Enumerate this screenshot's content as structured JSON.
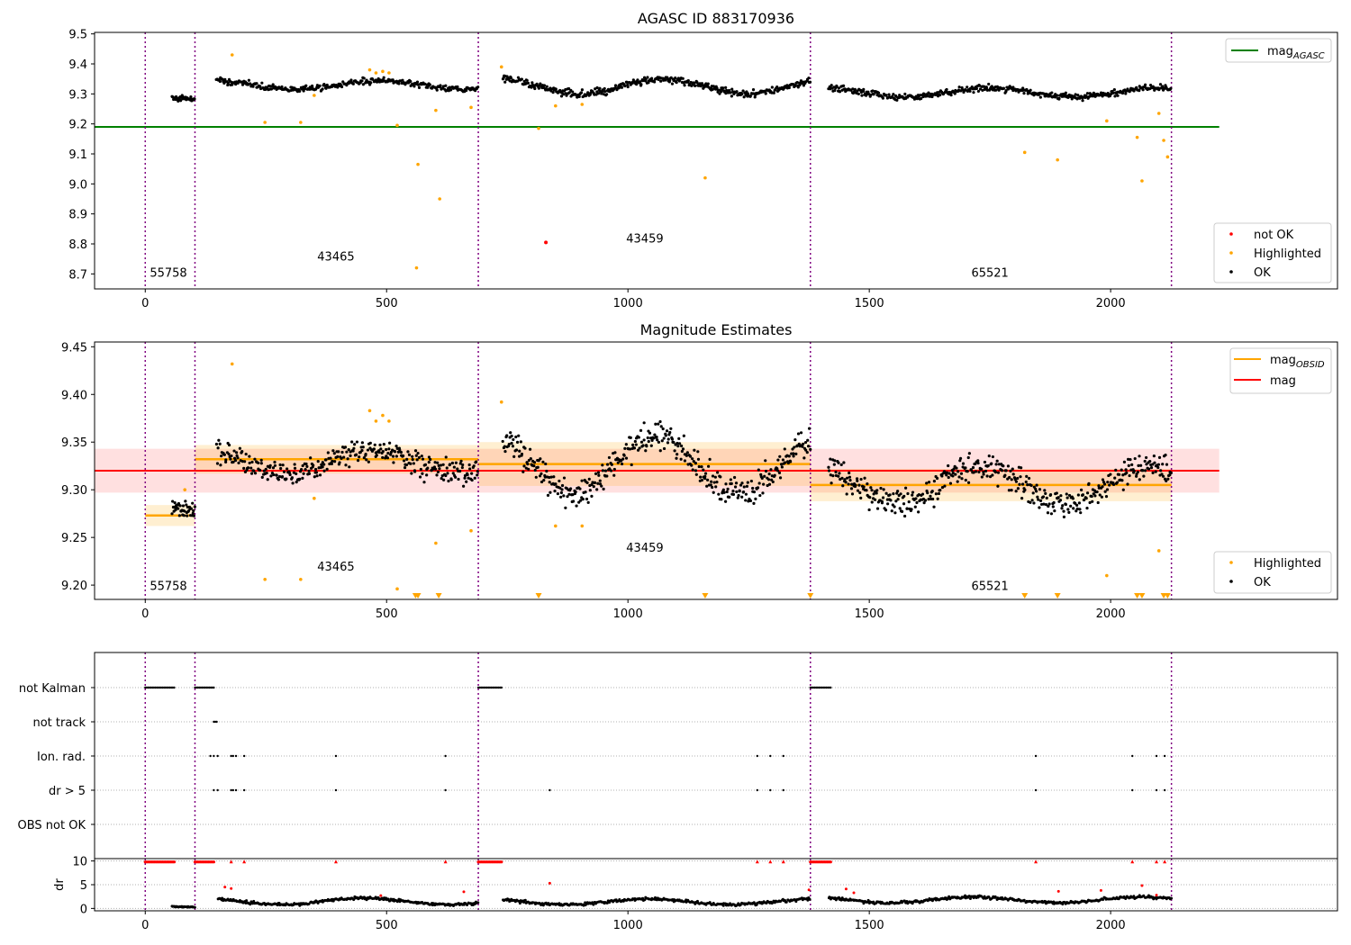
{
  "chart_data": [
    {
      "type": "scatter",
      "title": "AGASC ID 883170936",
      "xlim": [
        -105,
        2470
      ],
      "ylim": [
        8.65,
        9.505
      ],
      "xticks": [
        0,
        500,
        1000,
        1500,
        2000
      ],
      "yticks": [
        8.7,
        8.8,
        8.9,
        9.0,
        9.1,
        9.2,
        9.3,
        9.4,
        9.5
      ],
      "grid": false,
      "obsid_boundaries": [
        0,
        103,
        690,
        1378,
        2126
      ],
      "obsids": [
        {
          "label": "55758",
          "x": 48,
          "y": 8.69
        },
        {
          "label": "43465",
          "x": 395,
          "y": 8.745
        },
        {
          "label": "43459",
          "x": 1035,
          "y": 8.805
        },
        {
          "label": "65521",
          "x": 1750,
          "y": 8.69
        }
      ],
      "hlines": [
        {
          "name": "mag_AGASC",
          "y": 9.19,
          "x": [
            -105,
            2225
          ],
          "color": "#008000"
        }
      ],
      "segments": [
        {
          "x0": 55,
          "x1": 103,
          "base": 9.275,
          "amp": 0.012,
          "noise": 0.008,
          "n": 40
        },
        {
          "x0": 147,
          "x1": 690,
          "base": 9.33,
          "amp": 0.015,
          "noise": 0.01,
          "n": 330
        },
        {
          "x0": 740,
          "x1": 1378,
          "base": 9.325,
          "amp": 0.025,
          "noise": 0.012,
          "n": 400
        },
        {
          "x0": 1415,
          "x1": 2126,
          "base": 9.305,
          "amp": 0.015,
          "noise": 0.01,
          "n": 440
        }
      ],
      "highlighted": [
        [
          180,
          9.43
        ],
        [
          248,
          9.205
        ],
        [
          322,
          9.205
        ],
        [
          350,
          9.295
        ],
        [
          465,
          9.38
        ],
        [
          478,
          9.37
        ],
        [
          492,
          9.375
        ],
        [
          505,
          9.37
        ],
        [
          522,
          9.195
        ],
        [
          562,
          8.72
        ],
        [
          565,
          9.065
        ],
        [
          602,
          9.245
        ],
        [
          610,
          8.95
        ],
        [
          675,
          9.255
        ],
        [
          738,
          9.39
        ],
        [
          815,
          9.185
        ],
        [
          850,
          9.26
        ],
        [
          905,
          9.265
        ],
        [
          1160,
          9.02
        ],
        [
          1822,
          9.105
        ],
        [
          1890,
          9.08
        ],
        [
          1992,
          9.21
        ],
        [
          2055,
          9.155
        ],
        [
          2065,
          9.01
        ],
        [
          2100,
          9.235
        ],
        [
          2110,
          9.145
        ],
        [
          2118,
          9.09
        ]
      ],
      "not_ok": [
        [
          830,
          8.805
        ]
      ],
      "legend": {
        "line": [
          {
            "name": "mag",
            "sub": "AGASC",
            "color": "#008000"
          }
        ],
        "markers": [
          {
            "name": "not OK",
            "color": "#ff0000"
          },
          {
            "name": "Highlighted",
            "color": "#ffa500"
          },
          {
            "name": "OK",
            "color": "#000000"
          }
        ]
      }
    },
    {
      "type": "scatter",
      "title": "Magnitude Estimates",
      "xlim": [
        -105,
        2470
      ],
      "ylim": [
        9.185,
        9.455
      ],
      "xticks": [
        0,
        500,
        1000,
        1500,
        2000
      ],
      "yticks": [
        9.2,
        9.25,
        9.3,
        9.35,
        9.4,
        9.45
      ],
      "grid": false,
      "obsid_boundaries": [
        0,
        103,
        690,
        1378,
        2126
      ],
      "obsids": [
        {
          "label": "55758",
          "x": 48,
          "y": 9.195
        },
        {
          "label": "43465",
          "x": 395,
          "y": 9.215
        },
        {
          "label": "43459",
          "x": 1035,
          "y": 9.235
        },
        {
          "label": "65521",
          "x": 1750,
          "y": 9.195
        }
      ],
      "mag": {
        "y": 9.32,
        "band": [
          9.297,
          9.343
        ],
        "x": [
          -105,
          2225
        ],
        "color": "#ff0000"
      },
      "mag_obsid": [
        {
          "x0": 0,
          "x1": 103,
          "y": 9.273,
          "band": [
            9.262,
            9.284
          ]
        },
        {
          "x0": 103,
          "x1": 690,
          "y": 9.332,
          "band": [
            9.317,
            9.347
          ]
        },
        {
          "x0": 690,
          "x1": 1378,
          "y": 9.327,
          "band": [
            9.304,
            9.35
          ]
        },
        {
          "x0": 1378,
          "x1": 2126,
          "y": 9.305,
          "band": [
            9.288,
            9.322
          ]
        }
      ],
      "segments": [
        {
          "x0": 55,
          "x1": 103,
          "base": 9.273,
          "amp": 0.01,
          "noise": 0.01,
          "n": 40
        },
        {
          "x0": 147,
          "x1": 690,
          "base": 9.33,
          "amp": 0.012,
          "noise": 0.013,
          "n": 330
        },
        {
          "x0": 740,
          "x1": 1378,
          "base": 9.327,
          "amp": 0.03,
          "noise": 0.015,
          "n": 400
        },
        {
          "x0": 1415,
          "x1": 2126,
          "base": 9.305,
          "amp": 0.02,
          "noise": 0.013,
          "n": 440
        }
      ],
      "highlighted": [
        [
          82,
          9.3
        ],
        [
          180,
          9.432
        ],
        [
          248,
          9.206
        ],
        [
          322,
          9.206
        ],
        [
          350,
          9.291
        ],
        [
          465,
          9.383
        ],
        [
          478,
          9.372
        ],
        [
          492,
          9.378
        ],
        [
          505,
          9.372
        ],
        [
          522,
          9.196
        ],
        [
          602,
          9.244
        ],
        [
          675,
          9.257
        ],
        [
          738,
          9.392
        ],
        [
          850,
          9.262
        ],
        [
          905,
          9.262
        ],
        [
          1992,
          9.21
        ],
        [
          2100,
          9.236
        ]
      ],
      "clipped_low": [
        560,
        565,
        608,
        815,
        1160,
        1378,
        1822,
        1890,
        2055,
        2065,
        2110,
        2118
      ],
      "legend": {
        "line": [
          {
            "name": "mag",
            "sub": "OBSID",
            "color": "#ffa500"
          },
          {
            "name": "mag",
            "sub": "",
            "color": "#ff0000"
          }
        ],
        "markers": [
          {
            "name": "Highlighted",
            "color": "#ffa500"
          },
          {
            "name": "OK",
            "color": "#000000"
          }
        ]
      }
    },
    {
      "type": "scatter",
      "xlim": [
        -105,
        2470
      ],
      "xticks": [
        0,
        500,
        1000,
        1500,
        2000
      ],
      "grid": true,
      "obsid_boundaries": [
        0,
        103,
        690,
        1378,
        2126
      ],
      "flag_rows": [
        "not Kalman",
        "not track",
        "Ion. rad.",
        "dr > 5",
        "OBS not OK"
      ],
      "flags": {
        "not Kalman": [
          [
            0,
            60
          ],
          [
            103,
            142
          ],
          [
            690,
            740
          ],
          [
            1378,
            1420
          ]
        ],
        "not track": [
          [
            142,
            150
          ]
        ],
        "Ion. rad.": [
          135,
          142,
          150,
          178,
          182,
          188,
          205,
          395,
          622,
          1268,
          1295,
          1322,
          1845,
          2045,
          2095,
          2112
        ],
        "dr > 5": [
          142,
          150,
          178,
          182,
          188,
          205,
          395,
          622,
          838,
          1268,
          1295,
          1322,
          1845,
          2045,
          2095,
          2112
        ],
        "OBS not OK": []
      },
      "dr": {
        "ylim": [
          -0.5,
          10.5
        ],
        "yticks": [
          0,
          5,
          10
        ],
        "ylabel": "dr",
        "clip_ranges": [
          [
            0,
            60
          ],
          [
            103,
            142
          ],
          [
            690,
            740
          ],
          [
            1378,
            1420
          ]
        ],
        "clip_points": [
          178,
          205,
          395,
          622,
          1268,
          1295,
          1322,
          1845,
          2045,
          2095,
          2112
        ],
        "red_points": [
          [
            165,
            4.5
          ],
          [
            178,
            4.2
          ],
          [
            488,
            2.7
          ],
          [
            660,
            3.5
          ],
          [
            838,
            5.3
          ],
          [
            1375,
            3.9
          ],
          [
            1452,
            4.1
          ],
          [
            1468,
            3.3
          ],
          [
            1892,
            3.6
          ],
          [
            1980,
            3.8
          ],
          [
            2065,
            4.8
          ],
          [
            2095,
            2.8
          ]
        ],
        "segments": [
          {
            "x0": 55,
            "x1": 103,
            "base": 0.3,
            "amp": 0.1,
            "noise": 0.1,
            "n": 30
          },
          {
            "x0": 150,
            "x1": 690,
            "base": 1.5,
            "amp": 0.7,
            "noise": 0.3,
            "n": 300
          },
          {
            "x0": 740,
            "x1": 1378,
            "base": 1.4,
            "amp": 0.6,
            "noise": 0.3,
            "n": 330
          },
          {
            "x0": 1415,
            "x1": 2126,
            "base": 1.8,
            "amp": 0.6,
            "noise": 0.3,
            "n": 380
          }
        ]
      }
    }
  ]
}
